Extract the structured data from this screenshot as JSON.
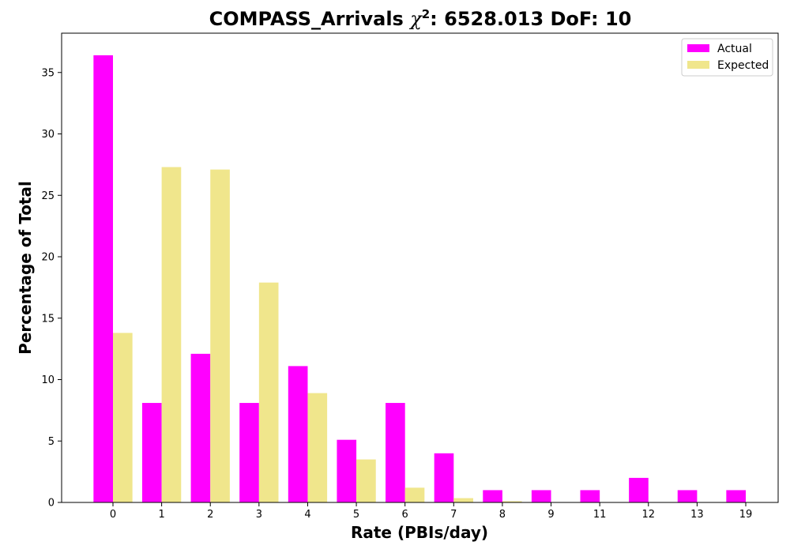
{
  "chart_data": {
    "type": "bar",
    "title_prefix": "COMPASS_Arrivals ",
    "title_symbol": "χ",
    "title_superscript": "2",
    "title_suffix": ": 6528.013 DoF: 10",
    "xlabel": "Rate (PBIs/day)",
    "ylabel": "Percentage of Total",
    "categories": [
      "0",
      "1",
      "2",
      "3",
      "4",
      "5",
      "6",
      "7",
      "8",
      "9",
      "11",
      "12",
      "13",
      "19"
    ],
    "series": [
      {
        "name": "Actual",
        "color": "#ff00ff",
        "values": [
          36.4,
          8.1,
          12.1,
          8.1,
          11.1,
          5.1,
          8.1,
          4.0,
          1.0,
          1.0,
          1.0,
          2.0,
          1.0,
          1.0
        ]
      },
      {
        "name": "Expected",
        "color": "#f0e68c",
        "values": [
          13.8,
          27.3,
          27.1,
          17.9,
          8.9,
          3.5,
          1.2,
          0.35,
          0.1,
          0.02,
          0.0,
          0.0,
          0.0,
          0.0
        ]
      }
    ],
    "ylim": [
      0,
      38.2
    ],
    "yticks": [
      "0",
      "5",
      "10",
      "15",
      "20",
      "25",
      "30",
      "35"
    ],
    "grid": false,
    "legend_position": "top-right"
  }
}
